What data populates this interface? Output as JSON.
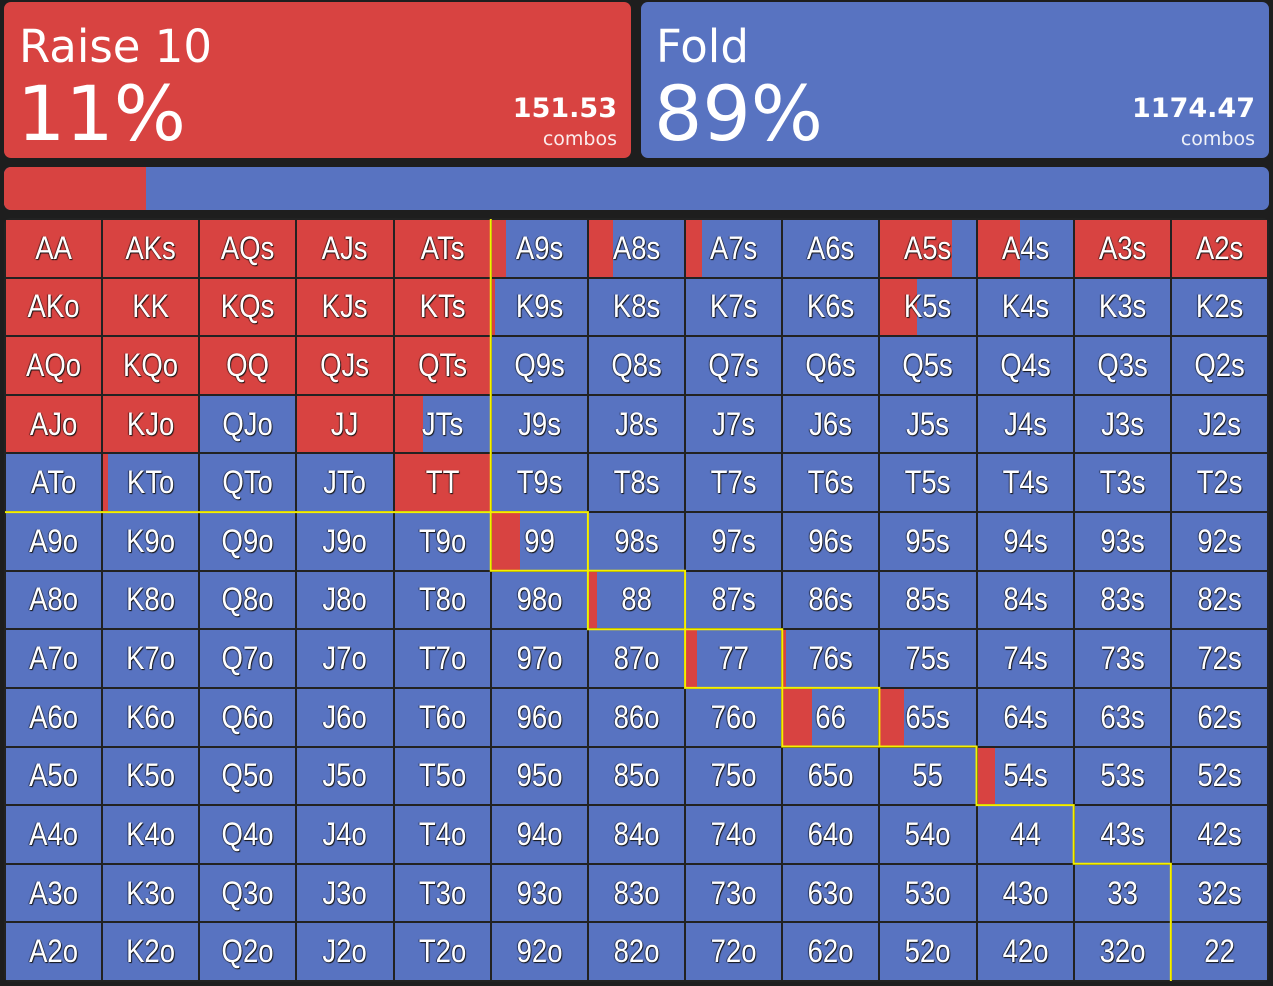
{
  "actions": [
    {
      "label": "Raise 10",
      "percent": "11%",
      "combos": "151.53",
      "combos_label": "combos",
      "color": "#d84341"
    },
    {
      "label": "Fold",
      "percent": "89%",
      "combos": "1174.47",
      "combos_label": "combos",
      "color": "#5873c1"
    }
  ],
  "ratio_bar": {
    "raise_fraction": 0.112
  },
  "grid": {
    "raise_color": "#d84341",
    "fold_color": "#5873c1",
    "border_color": "#f5f000",
    "cells": [
      [
        {
          "h": "AA",
          "r": 1
        },
        {
          "h": "AKs",
          "r": 1
        },
        {
          "h": "AQs",
          "r": 1
        },
        {
          "h": "AJs",
          "r": 1
        },
        {
          "h": "ATs",
          "r": 1
        },
        {
          "h": "A9s",
          "r": 0.15
        },
        {
          "h": "A8s",
          "r": 0.25
        },
        {
          "h": "A7s",
          "r": 0.17
        },
        {
          "h": "A6s",
          "r": 0
        },
        {
          "h": "A5s",
          "r": 0.75
        },
        {
          "h": "A4s",
          "r": 0.45
        },
        {
          "h": "A3s",
          "r": 1
        },
        {
          "h": "A2s",
          "r": 1
        }
      ],
      [
        {
          "h": "AKo",
          "r": 1
        },
        {
          "h": "KK",
          "r": 1
        },
        {
          "h": "KQs",
          "r": 1
        },
        {
          "h": "KJs",
          "r": 1
        },
        {
          "h": "KTs",
          "r": 1
        },
        {
          "h": "K9s",
          "r": 0.03
        },
        {
          "h": "K8s",
          "r": 0
        },
        {
          "h": "K7s",
          "r": 0
        },
        {
          "h": "K6s",
          "r": 0
        },
        {
          "h": "K5s",
          "r": 0.39
        },
        {
          "h": "K4s",
          "r": 0
        },
        {
          "h": "K3s",
          "r": 0
        },
        {
          "h": "K2s",
          "r": 0
        }
      ],
      [
        {
          "h": "AQo",
          "r": 1
        },
        {
          "h": "KQo",
          "r": 1
        },
        {
          "h": "QQ",
          "r": 1
        },
        {
          "h": "QJs",
          "r": 1
        },
        {
          "h": "QTs",
          "r": 1
        },
        {
          "h": "Q9s",
          "r": 0
        },
        {
          "h": "Q8s",
          "r": 0
        },
        {
          "h": "Q7s",
          "r": 0
        },
        {
          "h": "Q6s",
          "r": 0
        },
        {
          "h": "Q5s",
          "r": 0
        },
        {
          "h": "Q4s",
          "r": 0
        },
        {
          "h": "Q3s",
          "r": 0
        },
        {
          "h": "Q2s",
          "r": 0
        }
      ],
      [
        {
          "h": "AJo",
          "r": 1
        },
        {
          "h": "KJo",
          "r": 1
        },
        {
          "h": "QJo",
          "r": 0
        },
        {
          "h": "JJ",
          "r": 1
        },
        {
          "h": "JTs",
          "r": 0.3
        },
        {
          "h": "J9s",
          "r": 0
        },
        {
          "h": "J8s",
          "r": 0
        },
        {
          "h": "J7s",
          "r": 0
        },
        {
          "h": "J6s",
          "r": 0
        },
        {
          "h": "J5s",
          "r": 0
        },
        {
          "h": "J4s",
          "r": 0
        },
        {
          "h": "J3s",
          "r": 0
        },
        {
          "h": "J2s",
          "r": 0
        }
      ],
      [
        {
          "h": "ATo",
          "r": 0
        },
        {
          "h": "KTo",
          "r": 0.05
        },
        {
          "h": "QTo",
          "r": 0
        },
        {
          "h": "JTo",
          "r": 0
        },
        {
          "h": "TT",
          "r": 1
        },
        {
          "h": "T9s",
          "r": 0
        },
        {
          "h": "T8s",
          "r": 0
        },
        {
          "h": "T7s",
          "r": 0
        },
        {
          "h": "T6s",
          "r": 0
        },
        {
          "h": "T5s",
          "r": 0
        },
        {
          "h": "T4s",
          "r": 0
        },
        {
          "h": "T3s",
          "r": 0
        },
        {
          "h": "T2s",
          "r": 0
        }
      ],
      [
        {
          "h": "A9o",
          "r": 0
        },
        {
          "h": "K9o",
          "r": 0
        },
        {
          "h": "Q9o",
          "r": 0
        },
        {
          "h": "J9o",
          "r": 0
        },
        {
          "h": "T9o",
          "r": 0
        },
        {
          "h": "99",
          "r": 0.3
        },
        {
          "h": "98s",
          "r": 0
        },
        {
          "h": "97s",
          "r": 0
        },
        {
          "h": "96s",
          "r": 0
        },
        {
          "h": "95s",
          "r": 0
        },
        {
          "h": "94s",
          "r": 0
        },
        {
          "h": "93s",
          "r": 0
        },
        {
          "h": "92s",
          "r": 0
        }
      ],
      [
        {
          "h": "A8o",
          "r": 0
        },
        {
          "h": "K8o",
          "r": 0
        },
        {
          "h": "Q8o",
          "r": 0
        },
        {
          "h": "J8o",
          "r": 0
        },
        {
          "h": "T8o",
          "r": 0
        },
        {
          "h": "98o",
          "r": 0
        },
        {
          "h": "88",
          "r": 0.08
        },
        {
          "h": "87s",
          "r": 0
        },
        {
          "h": "86s",
          "r": 0
        },
        {
          "h": "85s",
          "r": 0
        },
        {
          "h": "84s",
          "r": 0
        },
        {
          "h": "83s",
          "r": 0
        },
        {
          "h": "82s",
          "r": 0
        }
      ],
      [
        {
          "h": "A7o",
          "r": 0
        },
        {
          "h": "K7o",
          "r": 0
        },
        {
          "h": "Q7o",
          "r": 0
        },
        {
          "h": "J7o",
          "r": 0
        },
        {
          "h": "T7o",
          "r": 0
        },
        {
          "h": "97o",
          "r": 0
        },
        {
          "h": "87o",
          "r": 0
        },
        {
          "h": "77",
          "r": 0.11
        },
        {
          "h": "76s",
          "r": 0.03
        },
        {
          "h": "75s",
          "r": 0
        },
        {
          "h": "74s",
          "r": 0
        },
        {
          "h": "73s",
          "r": 0
        },
        {
          "h": "72s",
          "r": 0
        }
      ],
      [
        {
          "h": "A6o",
          "r": 0
        },
        {
          "h": "K6o",
          "r": 0
        },
        {
          "h": "Q6o",
          "r": 0
        },
        {
          "h": "J6o",
          "r": 0
        },
        {
          "h": "T6o",
          "r": 0
        },
        {
          "h": "96o",
          "r": 0
        },
        {
          "h": "86o",
          "r": 0
        },
        {
          "h": "76o",
          "r": 0
        },
        {
          "h": "66",
          "r": 0.3
        },
        {
          "h": "65s",
          "r": 0.25
        },
        {
          "h": "64s",
          "r": 0
        },
        {
          "h": "63s",
          "r": 0
        },
        {
          "h": "62s",
          "r": 0
        }
      ],
      [
        {
          "h": "A5o",
          "r": 0
        },
        {
          "h": "K5o",
          "r": 0
        },
        {
          "h": "Q5o",
          "r": 0
        },
        {
          "h": "J5o",
          "r": 0
        },
        {
          "h": "T5o",
          "r": 0
        },
        {
          "h": "95o",
          "r": 0
        },
        {
          "h": "85o",
          "r": 0
        },
        {
          "h": "75o",
          "r": 0
        },
        {
          "h": "65o",
          "r": 0
        },
        {
          "h": "55",
          "r": 0
        },
        {
          "h": "54s",
          "r": 0.18
        },
        {
          "h": "53s",
          "r": 0
        },
        {
          "h": "52s",
          "r": 0
        }
      ],
      [
        {
          "h": "A4o",
          "r": 0
        },
        {
          "h": "K4o",
          "r": 0
        },
        {
          "h": "Q4o",
          "r": 0
        },
        {
          "h": "J4o",
          "r": 0
        },
        {
          "h": "T4o",
          "r": 0
        },
        {
          "h": "94o",
          "r": 0
        },
        {
          "h": "84o",
          "r": 0
        },
        {
          "h": "74o",
          "r": 0
        },
        {
          "h": "64o",
          "r": 0
        },
        {
          "h": "54o",
          "r": 0
        },
        {
          "h": "44",
          "r": 0
        },
        {
          "h": "43s",
          "r": 0
        },
        {
          "h": "42s",
          "r": 0
        }
      ],
      [
        {
          "h": "A3o",
          "r": 0
        },
        {
          "h": "K3o",
          "r": 0
        },
        {
          "h": "Q3o",
          "r": 0
        },
        {
          "h": "J3o",
          "r": 0
        },
        {
          "h": "T3o",
          "r": 0
        },
        {
          "h": "93o",
          "r": 0
        },
        {
          "h": "83o",
          "r": 0
        },
        {
          "h": "73o",
          "r": 0
        },
        {
          "h": "63o",
          "r": 0
        },
        {
          "h": "53o",
          "r": 0
        },
        {
          "h": "43o",
          "r": 0
        },
        {
          "h": "33",
          "r": 0
        },
        {
          "h": "32s",
          "r": 0
        }
      ],
      [
        {
          "h": "A2o",
          "r": 0
        },
        {
          "h": "K2o",
          "r": 0
        },
        {
          "h": "Q2o",
          "r": 0
        },
        {
          "h": "J2o",
          "r": 0
        },
        {
          "h": "T2o",
          "r": 0
        },
        {
          "h": "92o",
          "r": 0
        },
        {
          "h": "82o",
          "r": 0
        },
        {
          "h": "72o",
          "r": 0
        },
        {
          "h": "62o",
          "r": 0
        },
        {
          "h": "52o",
          "r": 0
        },
        {
          "h": "42o",
          "r": 0
        },
        {
          "h": "32o",
          "r": 0
        },
        {
          "h": "22",
          "r": 0
        }
      ]
    ]
  }
}
